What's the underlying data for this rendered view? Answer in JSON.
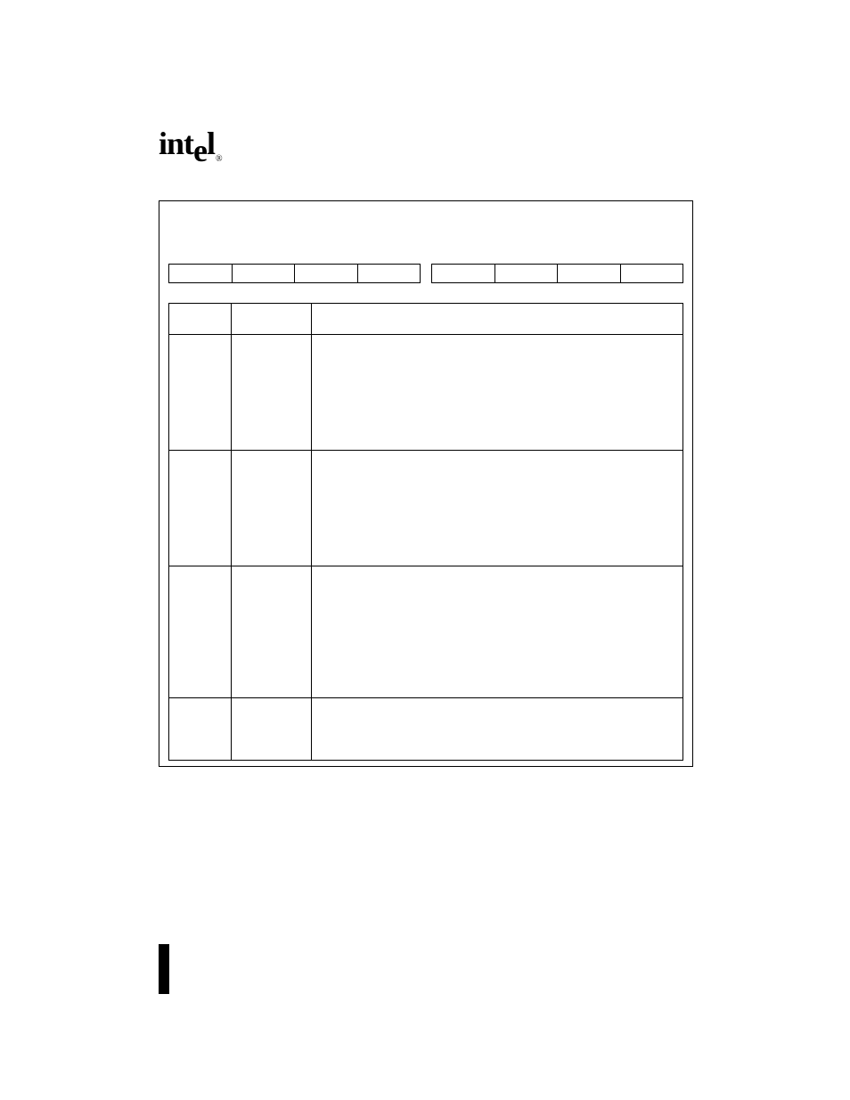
{
  "logo": {
    "text1": "int",
    "text2": "e",
    "text3": "l",
    "reg": "®"
  },
  "bitrow": {
    "left_cells": 4,
    "right_cells": 4
  },
  "table": {
    "header": {
      "c1": "",
      "c2": "",
      "c3": ""
    },
    "rows": [
      {
        "c1": "",
        "c2": "",
        "c3": ""
      },
      {
        "c1": "",
        "c2": "",
        "c3": ""
      },
      {
        "c1": "",
        "c2": "",
        "c3": ""
      },
      {
        "c1": "",
        "c2": "",
        "c3": ""
      }
    ]
  },
  "colors": {
    "bg": "#ffffff",
    "line": "#000000"
  }
}
